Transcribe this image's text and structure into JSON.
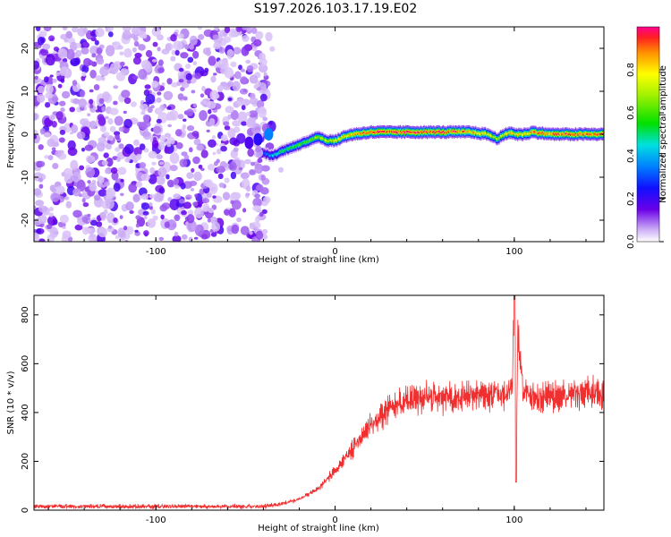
{
  "title": "S197.2026.103.17.19.E02",
  "chart_data": [
    {
      "type": "heatmap",
      "xlabel": "Height of straight line (km)",
      "ylabel": "Frequency (Hz)",
      "xlim": [
        -168,
        150
      ],
      "ylim": [
        -25,
        25
      ],
      "xticks": [
        -100,
        0,
        100
      ],
      "yticks": [
        -20,
        -10,
        0,
        10,
        20
      ],
      "colorbar": {
        "label": "Normalized spectral amplitude",
        "range": [
          0,
          1
        ],
        "ticks": [
          "0.0",
          "0.2",
          "0.4",
          "0.6",
          "0.8"
        ]
      },
      "ridge": {
        "description_x": [
          -40,
          -35,
          -30,
          -25,
          -20,
          -15,
          -10,
          -5,
          0,
          5,
          10,
          20,
          40,
          60,
          75,
          85,
          90,
          95,
          98,
          100,
          105,
          110,
          120,
          130,
          140,
          150
        ],
        "frequency_hz": [
          -4.5,
          -5,
          -4,
          -3,
          -2.5,
          -1.5,
          -0.5,
          -1.5,
          -1.5,
          -0.5,
          0,
          0.5,
          0.5,
          0.5,
          0.5,
          0,
          -1,
          0,
          0.5,
          0,
          0,
          0.5,
          0,
          0,
          0,
          0
        ],
        "amplitude": [
          0.3,
          0.45,
          0.55,
          0.6,
          0.62,
          0.65,
          0.7,
          0.75,
          0.8,
          0.85,
          0.9,
          1.0,
          1.0,
          1.0,
          0.9,
          0.8,
          0.75,
          0.8,
          0.85,
          0.8,
          0.85,
          0.9,
          0.95,
          0.95,
          0.95,
          0.95
        ]
      },
      "noise_region_x": [
        -168,
        -38
      ]
    },
    {
      "type": "line",
      "xlabel": "Height of straight line (km)",
      "ylabel": "SNR (10 * v/v)",
      "xlim": [
        -168,
        150
      ],
      "ylim": [
        0,
        880
      ],
      "xticks": [
        -100,
        0,
        100
      ],
      "yticks": [
        0,
        200,
        400,
        600,
        800
      ],
      "color": "#f03030",
      "series": [
        {
          "name": "SNR",
          "x": [
            -168,
            -150,
            -120,
            -100,
            -80,
            -60,
            -40,
            -30,
            -20,
            -10,
            0,
            10,
            20,
            30,
            40,
            50,
            60,
            70,
            80,
            90,
            95,
            99,
            100,
            101,
            102,
            105,
            110,
            120,
            130,
            140,
            150
          ],
          "values": [
            15,
            15,
            15,
            15,
            15,
            15,
            15,
            25,
            45,
            85,
            160,
            250,
            350,
            420,
            450,
            460,
            465,
            465,
            470,
            470,
            470,
            520,
            880,
            120,
            700,
            470,
            470,
            470,
            475,
            480,
            480
          ]
        }
      ]
    }
  ]
}
